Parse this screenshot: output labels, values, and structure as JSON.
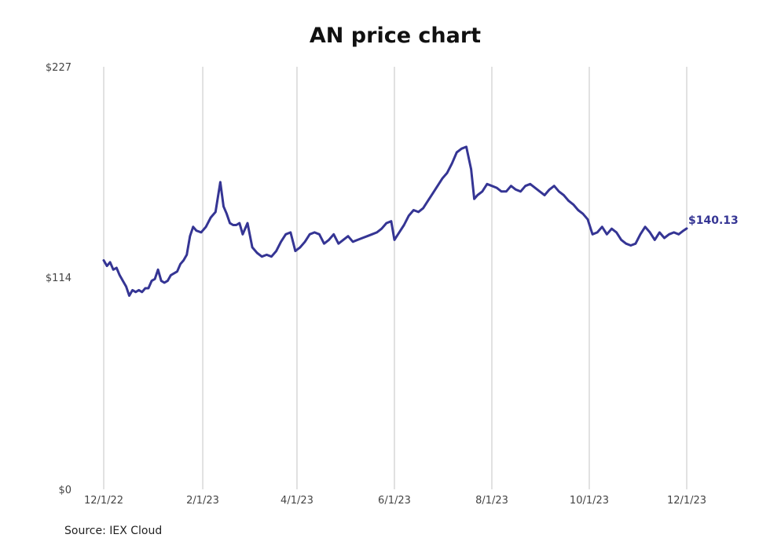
{
  "chart_data": {
    "type": "line",
    "title": "AN price chart",
    "source": "Source: IEX Cloud",
    "xlabel": "",
    "ylabel": "",
    "xlim": [
      "2022-12-01",
      "2023-12-01"
    ],
    "ylim": [
      0,
      227
    ],
    "x_ticks": [
      "12/1/22",
      "2/1/23",
      "4/1/23",
      "6/1/23",
      "8/1/23",
      "10/1/23",
      "12/1/23"
    ],
    "x_tick_dates": [
      "2022-12-01",
      "2023-02-01",
      "2023-04-01",
      "2023-06-01",
      "2023-08-01",
      "2023-10-01",
      "2023-12-01"
    ],
    "y_ticks": [
      "$0",
      "$114",
      "$227"
    ],
    "y_tick_values": [
      0,
      114,
      227
    ],
    "grid": "vertical",
    "line_color": "#353594",
    "last_value_label": "$140.13",
    "series": [
      {
        "x": [
          "2022-12-01",
          "2022-12-03",
          "2022-12-05",
          "2022-12-07",
          "2022-12-09",
          "2022-12-11",
          "2022-12-13",
          "2022-12-15",
          "2022-12-17",
          "2022-12-19",
          "2022-12-21",
          "2022-12-23",
          "2022-12-25",
          "2022-12-27",
          "2022-12-29",
          "2022-12-31",
          "2023-01-02",
          "2023-01-04",
          "2023-01-06",
          "2023-01-08",
          "2023-01-10",
          "2023-01-12",
          "2023-01-14",
          "2023-01-16",
          "2023-01-18",
          "2023-01-20",
          "2023-01-22",
          "2023-01-24",
          "2023-01-26",
          "2023-01-28",
          "2023-01-31",
          "2023-02-03",
          "2023-02-06",
          "2023-02-09",
          "2023-02-12",
          "2023-02-14",
          "2023-02-16",
          "2023-02-18",
          "2023-02-20",
          "2023-02-22",
          "2023-02-24",
          "2023-02-26",
          "2023-03-01",
          "2023-03-04",
          "2023-03-07",
          "2023-03-10",
          "2023-03-13",
          "2023-03-16",
          "2023-03-19",
          "2023-03-22",
          "2023-03-25",
          "2023-03-28",
          "2023-03-31",
          "2023-04-03",
          "2023-04-06",
          "2023-04-09",
          "2023-04-12",
          "2023-04-15",
          "2023-04-18",
          "2023-04-21",
          "2023-04-24",
          "2023-04-27",
          "2023-04-30",
          "2023-05-03",
          "2023-05-06",
          "2023-05-09",
          "2023-05-12",
          "2023-05-15",
          "2023-05-18",
          "2023-05-21",
          "2023-05-24",
          "2023-05-27",
          "2023-05-30",
          "2023-06-01",
          "2023-06-04",
          "2023-06-07",
          "2023-06-10",
          "2023-06-13",
          "2023-06-16",
          "2023-06-19",
          "2023-06-22",
          "2023-06-25",
          "2023-06-28",
          "2023-07-01",
          "2023-07-04",
          "2023-07-07",
          "2023-07-10",
          "2023-07-13",
          "2023-07-16",
          "2023-07-19",
          "2023-07-21",
          "2023-07-23",
          "2023-07-26",
          "2023-07-29",
          "2023-08-01",
          "2023-08-04",
          "2023-08-07",
          "2023-08-10",
          "2023-08-13",
          "2023-08-16",
          "2023-08-19",
          "2023-08-22",
          "2023-08-25",
          "2023-08-28",
          "2023-08-31",
          "2023-09-03",
          "2023-09-06",
          "2023-09-09",
          "2023-09-12",
          "2023-09-15",
          "2023-09-18",
          "2023-09-21",
          "2023-09-24",
          "2023-09-27",
          "2023-09-30",
          "2023-10-03",
          "2023-10-06",
          "2023-10-09",
          "2023-10-12",
          "2023-10-15",
          "2023-10-18",
          "2023-10-21",
          "2023-10-24",
          "2023-10-27",
          "2023-10-30",
          "2023-11-02",
          "2023-11-05",
          "2023-11-08",
          "2023-11-11",
          "2023-11-14",
          "2023-11-17",
          "2023-11-20",
          "2023-11-23",
          "2023-11-26",
          "2023-11-29",
          "2023-12-01"
        ],
        "values": [
          123,
          120,
          122,
          118,
          119,
          115,
          112,
          109,
          104,
          107,
          106,
          107,
          106,
          108,
          108,
          112,
          113,
          118,
          112,
          111,
          112,
          115,
          116,
          117,
          121,
          123,
          126,
          136,
          141,
          139,
          138,
          141,
          146,
          149,
          165,
          152,
          148,
          143,
          142,
          142,
          143,
          137,
          143,
          130,
          127,
          125,
          126,
          125,
          128,
          133,
          137,
          138,
          128,
          130,
          133,
          137,
          138,
          137,
          132,
          134,
          137,
          132,
          134,
          136,
          133,
          134,
          135,
          136,
          137,
          138,
          140,
          143,
          144,
          134,
          138,
          142,
          147,
          150,
          149,
          151,
          155,
          159,
          163,
          167,
          170,
          175,
          181,
          183,
          184,
          172,
          156,
          158,
          160,
          164,
          163,
          162,
          160,
          160,
          163,
          161,
          160,
          163,
          164,
          162,
          160,
          158,
          161,
          163,
          160,
          158,
          155,
          153,
          150,
          148,
          145,
          137,
          138,
          141,
          137,
          140,
          138,
          134,
          132,
          131,
          132,
          137,
          141,
          138,
          134,
          138,
          135,
          137,
          138,
          137,
          139,
          140.13
        ]
      }
    ]
  }
}
